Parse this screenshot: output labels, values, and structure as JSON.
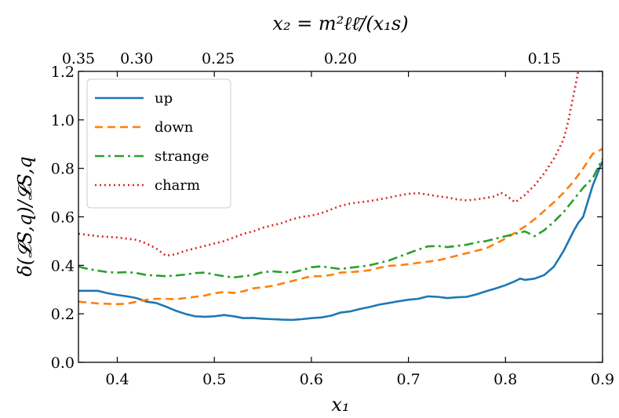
{
  "chart_data": {
    "type": "line",
    "xlabel": "x₁",
    "ylabel": "δ(𝓛S,q)/𝓛S,q",
    "top_xlabel": "x₂ = m²ℓℓ̄/(x₁s)",
    "xlim": [
      0.36,
      0.9
    ],
    "ylim": [
      0.0,
      1.2
    ],
    "x_ticks": [
      0.4,
      0.5,
      0.6,
      0.7,
      0.8,
      0.9
    ],
    "x_tick_labels": [
      "0.4",
      "0.5",
      "0.6",
      "0.7",
      "0.8",
      "0.9"
    ],
    "y_ticks": [
      0.0,
      0.2,
      0.4,
      0.6,
      0.8,
      1.0,
      1.2
    ],
    "y_tick_labels": [
      "0.0",
      "0.2",
      "0.4",
      "0.6",
      "0.8",
      "1.0",
      "1.2"
    ],
    "top_ticks": [
      {
        "label": "0.35",
        "x1": 0.36
      },
      {
        "label": "0.30",
        "x1": 0.42
      },
      {
        "label": "0.25",
        "x1": 0.504
      },
      {
        "label": "0.20",
        "x1": 0.63
      },
      {
        "label": "0.15",
        "x1": 0.84
      }
    ],
    "grid": false,
    "legend_position": "top-left",
    "series": [
      {
        "name": "up",
        "color": "#1f77b4",
        "dash": "solid",
        "points": [
          [
            0.36,
            0.295
          ],
          [
            0.38,
            0.295
          ],
          [
            0.39,
            0.285
          ],
          [
            0.4,
            0.278
          ],
          [
            0.41,
            0.272
          ],
          [
            0.42,
            0.265
          ],
          [
            0.43,
            0.25
          ],
          [
            0.44,
            0.245
          ],
          [
            0.45,
            0.23
          ],
          [
            0.46,
            0.213
          ],
          [
            0.47,
            0.2
          ],
          [
            0.48,
            0.19
          ],
          [
            0.49,
            0.188
          ],
          [
            0.5,
            0.19
          ],
          [
            0.51,
            0.195
          ],
          [
            0.52,
            0.19
          ],
          [
            0.53,
            0.182
          ],
          [
            0.54,
            0.183
          ],
          [
            0.55,
            0.18
          ],
          [
            0.56,
            0.178
          ],
          [
            0.57,
            0.176
          ],
          [
            0.58,
            0.175
          ],
          [
            0.59,
            0.178
          ],
          [
            0.6,
            0.182
          ],
          [
            0.61,
            0.185
          ],
          [
            0.62,
            0.192
          ],
          [
            0.63,
            0.205
          ],
          [
            0.64,
            0.21
          ],
          [
            0.65,
            0.22
          ],
          [
            0.66,
            0.228
          ],
          [
            0.67,
            0.238
          ],
          [
            0.68,
            0.245
          ],
          [
            0.69,
            0.252
          ],
          [
            0.7,
            0.258
          ],
          [
            0.71,
            0.262
          ],
          [
            0.72,
            0.272
          ],
          [
            0.73,
            0.27
          ],
          [
            0.74,
            0.265
          ],
          [
            0.75,
            0.268
          ],
          [
            0.76,
            0.27
          ],
          [
            0.77,
            0.28
          ],
          [
            0.78,
            0.293
          ],
          [
            0.79,
            0.305
          ],
          [
            0.8,
            0.318
          ],
          [
            0.81,
            0.335
          ],
          [
            0.815,
            0.345
          ],
          [
            0.82,
            0.34
          ],
          [
            0.83,
            0.345
          ],
          [
            0.84,
            0.36
          ],
          [
            0.85,
            0.395
          ],
          [
            0.86,
            0.46
          ],
          [
            0.87,
            0.54
          ],
          [
            0.875,
            0.575
          ],
          [
            0.88,
            0.6
          ],
          [
            0.885,
            0.665
          ],
          [
            0.89,
            0.73
          ],
          [
            0.895,
            0.78
          ],
          [
            0.9,
            0.83
          ]
        ]
      },
      {
        "name": "down",
        "color": "#ff7f0e",
        "dash": "10,6",
        "points": [
          [
            0.36,
            0.25
          ],
          [
            0.38,
            0.243
          ],
          [
            0.4,
            0.24
          ],
          [
            0.41,
            0.242
          ],
          [
            0.42,
            0.25
          ],
          [
            0.43,
            0.258
          ],
          [
            0.44,
            0.262
          ],
          [
            0.45,
            0.262
          ],
          [
            0.46,
            0.26
          ],
          [
            0.47,
            0.265
          ],
          [
            0.48,
            0.27
          ],
          [
            0.49,
            0.275
          ],
          [
            0.5,
            0.285
          ],
          [
            0.51,
            0.29
          ],
          [
            0.52,
            0.286
          ],
          [
            0.53,
            0.293
          ],
          [
            0.54,
            0.305
          ],
          [
            0.55,
            0.31
          ],
          [
            0.56,
            0.315
          ],
          [
            0.57,
            0.325
          ],
          [
            0.58,
            0.335
          ],
          [
            0.59,
            0.345
          ],
          [
            0.6,
            0.355
          ],
          [
            0.61,
            0.355
          ],
          [
            0.62,
            0.36
          ],
          [
            0.63,
            0.37
          ],
          [
            0.64,
            0.372
          ],
          [
            0.65,
            0.375
          ],
          [
            0.66,
            0.38
          ],
          [
            0.67,
            0.39
          ],
          [
            0.68,
            0.398
          ],
          [
            0.69,
            0.4
          ],
          [
            0.7,
            0.405
          ],
          [
            0.71,
            0.41
          ],
          [
            0.72,
            0.415
          ],
          [
            0.73,
            0.42
          ],
          [
            0.74,
            0.43
          ],
          [
            0.75,
            0.44
          ],
          [
            0.76,
            0.45
          ],
          [
            0.77,
            0.46
          ],
          [
            0.78,
            0.47
          ],
          [
            0.79,
            0.49
          ],
          [
            0.8,
            0.51
          ],
          [
            0.81,
            0.535
          ],
          [
            0.82,
            0.56
          ],
          [
            0.83,
            0.59
          ],
          [
            0.84,
            0.625
          ],
          [
            0.85,
            0.66
          ],
          [
            0.86,
            0.7
          ],
          [
            0.87,
            0.745
          ],
          [
            0.88,
            0.8
          ],
          [
            0.89,
            0.86
          ],
          [
            0.9,
            0.88
          ]
        ]
      },
      {
        "name": "strange",
        "color": "#2ca02c",
        "dash": "12,5,3,5",
        "points": [
          [
            0.36,
            0.395
          ],
          [
            0.37,
            0.385
          ],
          [
            0.38,
            0.378
          ],
          [
            0.39,
            0.372
          ],
          [
            0.4,
            0.37
          ],
          [
            0.41,
            0.372
          ],
          [
            0.42,
            0.368
          ],
          [
            0.43,
            0.36
          ],
          [
            0.44,
            0.358
          ],
          [
            0.45,
            0.355
          ],
          [
            0.46,
            0.358
          ],
          [
            0.47,
            0.362
          ],
          [
            0.48,
            0.368
          ],
          [
            0.49,
            0.37
          ],
          [
            0.5,
            0.362
          ],
          [
            0.51,
            0.355
          ],
          [
            0.52,
            0.35
          ],
          [
            0.53,
            0.355
          ],
          [
            0.54,
            0.36
          ],
          [
            0.55,
            0.372
          ],
          [
            0.56,
            0.375
          ],
          [
            0.57,
            0.372
          ],
          [
            0.58,
            0.37
          ],
          [
            0.59,
            0.38
          ],
          [
            0.6,
            0.392
          ],
          [
            0.61,
            0.396
          ],
          [
            0.62,
            0.39
          ],
          [
            0.63,
            0.385
          ],
          [
            0.64,
            0.39
          ],
          [
            0.65,
            0.395
          ],
          [
            0.66,
            0.4
          ],
          [
            0.67,
            0.41
          ],
          [
            0.68,
            0.42
          ],
          [
            0.69,
            0.435
          ],
          [
            0.7,
            0.45
          ],
          [
            0.71,
            0.465
          ],
          [
            0.72,
            0.478
          ],
          [
            0.73,
            0.48
          ],
          [
            0.74,
            0.475
          ],
          [
            0.75,
            0.48
          ],
          [
            0.76,
            0.485
          ],
          [
            0.77,
            0.495
          ],
          [
            0.78,
            0.5
          ],
          [
            0.79,
            0.51
          ],
          [
            0.8,
            0.52
          ],
          [
            0.81,
            0.53
          ],
          [
            0.82,
            0.54
          ],
          [
            0.83,
            0.52
          ],
          [
            0.84,
            0.545
          ],
          [
            0.85,
            0.58
          ],
          [
            0.86,
            0.62
          ],
          [
            0.87,
            0.67
          ],
          [
            0.88,
            0.72
          ],
          [
            0.89,
            0.76
          ],
          [
            0.9,
            0.84
          ]
        ]
      },
      {
        "name": "charm",
        "color": "#d62728",
        "dash": "2,4",
        "points": [
          [
            0.36,
            0.53
          ],
          [
            0.38,
            0.52
          ],
          [
            0.4,
            0.515
          ],
          [
            0.42,
            0.505
          ],
          [
            0.43,
            0.49
          ],
          [
            0.44,
            0.47
          ],
          [
            0.45,
            0.44
          ],
          [
            0.46,
            0.445
          ],
          [
            0.47,
            0.46
          ],
          [
            0.48,
            0.47
          ],
          [
            0.49,
            0.48
          ],
          [
            0.5,
            0.49
          ],
          [
            0.51,
            0.5
          ],
          [
            0.52,
            0.515
          ],
          [
            0.53,
            0.53
          ],
          [
            0.54,
            0.54
          ],
          [
            0.55,
            0.555
          ],
          [
            0.56,
            0.565
          ],
          [
            0.57,
            0.575
          ],
          [
            0.58,
            0.59
          ],
          [
            0.59,
            0.6
          ],
          [
            0.6,
            0.605
          ],
          [
            0.61,
            0.615
          ],
          [
            0.62,
            0.63
          ],
          [
            0.63,
            0.645
          ],
          [
            0.64,
            0.655
          ],
          [
            0.65,
            0.66
          ],
          [
            0.66,
            0.665
          ],
          [
            0.67,
            0.672
          ],
          [
            0.68,
            0.68
          ],
          [
            0.69,
            0.688
          ],
          [
            0.7,
            0.695
          ],
          [
            0.71,
            0.698
          ],
          [
            0.72,
            0.692
          ],
          [
            0.73,
            0.685
          ],
          [
            0.74,
            0.68
          ],
          [
            0.75,
            0.672
          ],
          [
            0.76,
            0.668
          ],
          [
            0.77,
            0.672
          ],
          [
            0.78,
            0.678
          ],
          [
            0.79,
            0.685
          ],
          [
            0.795,
            0.7
          ],
          [
            0.8,
            0.69
          ],
          [
            0.81,
            0.66
          ],
          [
            0.82,
            0.69
          ],
          [
            0.83,
            0.73
          ],
          [
            0.84,
            0.78
          ],
          [
            0.85,
            0.84
          ],
          [
            0.86,
            0.92
          ],
          [
            0.865,
            1.0
          ],
          [
            0.87,
            1.1
          ],
          [
            0.875,
            1.2
          ]
        ]
      }
    ]
  }
}
